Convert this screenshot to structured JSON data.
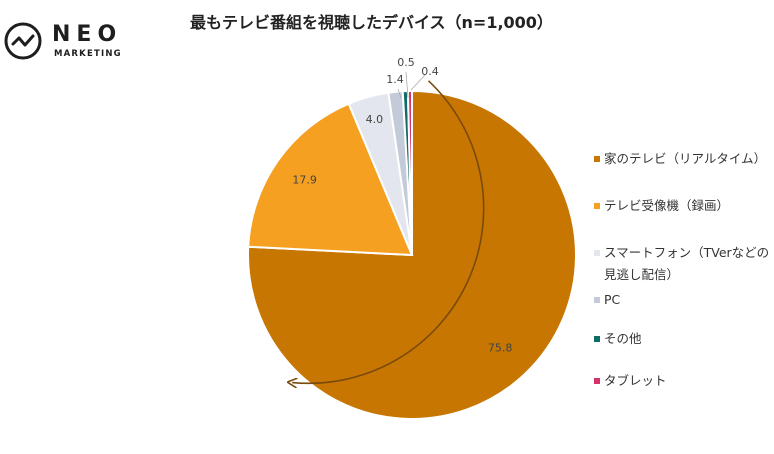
{
  "brand": {
    "name": "NEO",
    "sub": "MARKETING"
  },
  "chart_data": {
    "type": "pie",
    "title": "最もテレビ番組を視聴したデバイス（n=1,000）",
    "slices": [
      {
        "label": "家のテレビ（リアルタイム）",
        "value": 75.8,
        "display": "75.8",
        "color": "#c87602"
      },
      {
        "label": "テレビ受像機（録画）",
        "value": 17.9,
        "display": "17.9",
        "color": "#f5a020"
      },
      {
        "label": "スマートフォン（TVerなどの見逃し配信）",
        "value": 4.0,
        "display": "4.0",
        "color": "#e3e6ef"
      },
      {
        "label": "PC",
        "value": 1.4,
        "display": "1.4",
        "color": "#c4cbd8"
      },
      {
        "label": "その他",
        "value": 0.5,
        "display": "0.5",
        "color": "#0f6b66"
      },
      {
        "label": "タブレット",
        "value": 0.4,
        "display": "0.4",
        "color": "#d7336b"
      }
    ],
    "legend_position": "right",
    "arrow_color": "#7a4a0c"
  }
}
